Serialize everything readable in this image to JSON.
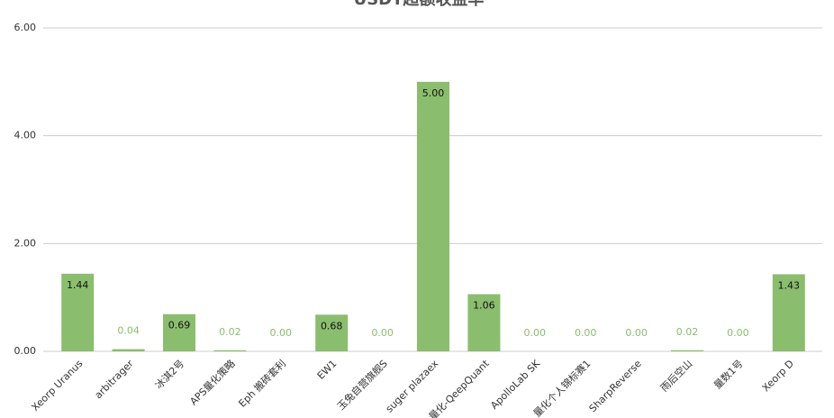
{
  "chart_data": {
    "type": "bar",
    "title": "USDT超额收益率",
    "categories": [
      "Xeorp Uranus",
      "arbitrager",
      "冰淇2号",
      "APS量化策略",
      "Eph 搬砖套利",
      "EW1",
      "玉兔自营旗舰S",
      "suger plazaex",
      "量化-QeepQuant",
      "ApolloLab SK",
      "量化个人锦标赛1",
      "SharpReverse",
      "雨后空山",
      "量数1号",
      "Xeorp D"
    ],
    "values": [
      1.44,
      0.04,
      0.69,
      0.02,
      0,
      0.68,
      0,
      5,
      1.06,
      0,
      0,
      0,
      0.02,
      0,
      1.43
    ],
    "value_labels": [
      "1.44",
      "0.04",
      "0.69",
      "0.02",
      "0.00",
      "0.68",
      "0.00",
      "5.00",
      "1.06",
      "0.00",
      "0.00",
      "0.00",
      "0.02",
      "0.00",
      "1.43"
    ],
    "color": "#8bbd6e",
    "ylim": [
      0,
      6
    ],
    "yticks": [
      {
        "value": 0,
        "label": "0.00"
      },
      {
        "value": 2,
        "label": "2.00"
      },
      {
        "value": 4,
        "label": "4.00"
      },
      {
        "value": 6,
        "label": "6.00"
      }
    ],
    "grid": true
  }
}
